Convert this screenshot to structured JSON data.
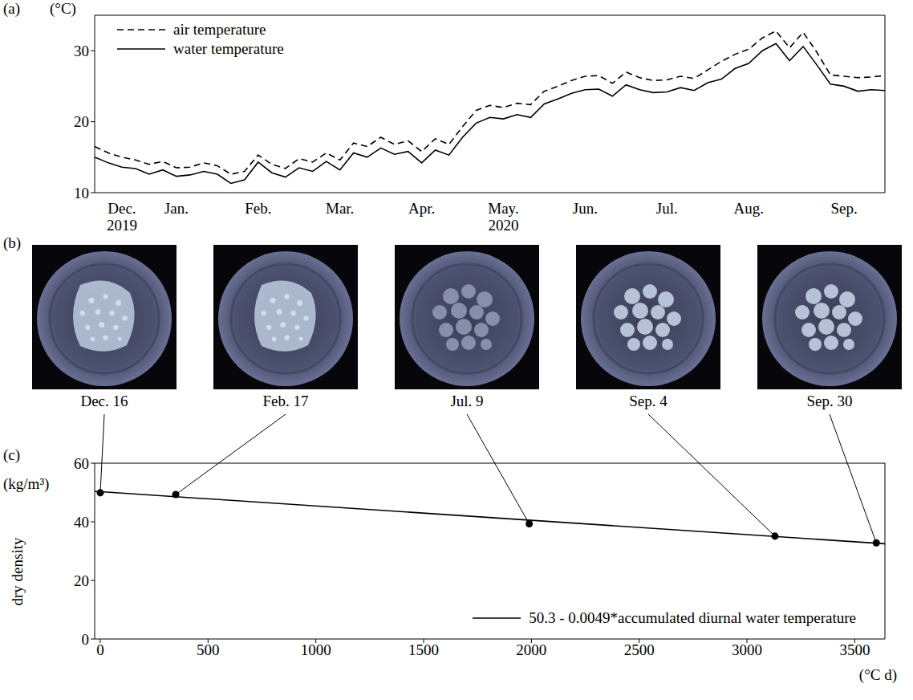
{
  "chart_data": [
    {
      "panel_label": "(a)",
      "type": "line",
      "ylabel": "(°C)",
      "categories": [
        null,
        null,
        "Dec. 2019",
        null,
        null,
        null,
        "Jan.",
        null,
        null,
        null,
        null,
        null,
        "Feb.",
        null,
        null,
        null,
        null,
        null,
        "Mar.",
        null,
        null,
        null,
        null,
        null,
        "Apr.",
        null,
        null,
        null,
        null,
        null,
        "May. 2020",
        null,
        null,
        null,
        null,
        null,
        "Jun.",
        null,
        null,
        null,
        null,
        null,
        "Jul.",
        null,
        null,
        null,
        null,
        null,
        "Aug.",
        null,
        null,
        null,
        null,
        null,
        null,
        "Sep.",
        null,
        null,
        null
      ],
      "series": [
        {
          "name": "air temperature",
          "color": "#000000",
          "line_style": "dashed",
          "values": [
            16.5,
            15.6,
            15.0,
            14.6,
            14.0,
            14.4,
            13.5,
            13.6,
            14.2,
            13.8,
            12.6,
            13.0,
            15.3,
            14.0,
            13.4,
            14.8,
            14.3,
            15.6,
            14.6,
            17.0,
            16.5,
            17.8,
            16.8,
            17.3,
            15.8,
            17.6,
            16.8,
            19.3,
            21.6,
            22.3,
            22.0,
            22.6,
            22.4,
            24.3,
            25.0,
            25.8,
            26.4,
            26.5,
            25.4,
            27.0,
            26.2,
            25.8,
            25.9,
            26.4,
            26.1,
            27.3,
            28.5,
            29.5,
            30.2,
            31.8,
            32.8,
            30.4,
            32.6,
            29.8,
            26.6,
            26.4,
            26.2,
            26.3,
            26.5
          ]
        },
        {
          "name": "water temperature",
          "color": "#000000",
          "line_style": "solid",
          "values": [
            15.0,
            14.2,
            13.6,
            13.4,
            12.6,
            13.2,
            12.3,
            12.5,
            13.0,
            12.6,
            11.3,
            11.8,
            14.3,
            12.8,
            12.2,
            13.5,
            13.0,
            14.4,
            13.2,
            15.6,
            15.0,
            16.3,
            15.4,
            15.8,
            14.2,
            16.0,
            15.3,
            17.8,
            19.8,
            20.6,
            20.4,
            21.0,
            20.6,
            22.5,
            23.2,
            24.0,
            24.5,
            24.6,
            23.6,
            25.2,
            24.5,
            24.1,
            24.2,
            24.8,
            24.4,
            25.5,
            26.0,
            27.5,
            28.2,
            30.0,
            31.0,
            28.6,
            30.6,
            28.0,
            25.3,
            25.0,
            24.3,
            24.5,
            24.4
          ]
        }
      ],
      "ylim": [
        10,
        35
      ],
      "yticks": [
        10,
        20,
        30
      ],
      "legend": "upper left",
      "grid": false
    },
    {
      "panel_label": "(c)",
      "type": "scatter",
      "ylabel": "dry density",
      "ylabel_unit": "(kg/m³)",
      "xlabel": "(°C d)",
      "series": [
        {
          "type": "scatter",
          "marker": "circle",
          "color": "#000000",
          "x": [
            0,
            350,
            1990,
            3130,
            3600
          ],
          "values": [
            49.9,
            49.3,
            39.3,
            35.1,
            32.8
          ]
        },
        {
          "type": "line",
          "name": "50.3 - 0.0049*accumulated diurnal water temperature",
          "color": "#000000",
          "line_style": "solid",
          "x": [
            -26,
            3640
          ],
          "values": [
            50.4,
            32.5
          ]
        }
      ],
      "xlim": [
        -26,
        3640
      ],
      "xticks": [
        0,
        500,
        1000,
        1500,
        2000,
        2500,
        3000,
        3500
      ],
      "ylim": [
        0,
        60
      ],
      "yticks": [
        0,
        20,
        40,
        60
      ],
      "legend": "lower right",
      "grid": false
    }
  ],
  "images": {
    "panel_label": "(b)",
    "labels": [
      "Dec. 16",
      "Feb. 17",
      "Jul. 9",
      "Sep. 4",
      "Sep. 30"
    ]
  }
}
